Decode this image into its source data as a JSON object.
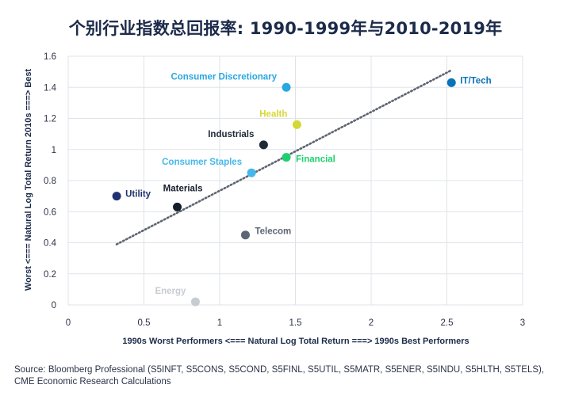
{
  "chart_data": {
    "type": "scatter",
    "title": "个别行业指数总回报率: 1990-1999年与2010-2019年",
    "xlabel": "1990s Worst Performers <=== Natural Log Total Return ===> 1990s Best Performers",
    "ylabel": "Worst <=== Natural Log Total Return 2010s ===> Best",
    "xlim": [
      0,
      3
    ],
    "ylim": [
      0,
      1.6
    ],
    "xticks": [
      "0",
      "0.5",
      "1",
      "1.5",
      "2",
      "2.5",
      "3"
    ],
    "yticks": [
      "0",
      "0.2",
      "0.4",
      "0.6",
      "0.8",
      "1",
      "1.2",
      "1.4",
      "1.6"
    ],
    "grid": true,
    "points": [
      {
        "label": "Consumer Discretionary",
        "x": 1.44,
        "y": 1.4,
        "color": "#29a8e0",
        "label_pos": "left-above"
      },
      {
        "label": "IT/Tech",
        "x": 2.53,
        "y": 1.43,
        "color": "#0a72b8",
        "label_pos": "right"
      },
      {
        "label": "Health",
        "x": 1.51,
        "y": 1.16,
        "color": "#d5d834",
        "label_pos": "left-above"
      },
      {
        "label": "Industrials",
        "x": 1.29,
        "y": 1.03,
        "color": "#1e2836",
        "label_pos": "left-above"
      },
      {
        "label": "Financial",
        "x": 1.44,
        "y": 0.95,
        "color": "#1fcf6f",
        "label_pos": "right-below"
      },
      {
        "label": "Consumer Staples",
        "x": 1.21,
        "y": 0.85,
        "color": "#45b7ea",
        "label_pos": "left-above"
      },
      {
        "label": "Utility",
        "x": 0.32,
        "y": 0.7,
        "color": "#203270",
        "label_pos": "right"
      },
      {
        "label": "Materials",
        "x": 0.72,
        "y": 0.63,
        "color": "#141d2c",
        "label_pos": "left-above-right"
      },
      {
        "label": "Telecom",
        "x": 1.17,
        "y": 0.45,
        "color": "#5d6675",
        "label_pos": "right-above"
      },
      {
        "label": "Energy",
        "x": 0.84,
        "y": 0.02,
        "color": "#c8cbd0",
        "label_pos": "left-above"
      }
    ],
    "trendline": {
      "x": [
        0.32,
        2.53
      ],
      "y": [
        0.39,
        1.51
      ],
      "color": "#5d6470",
      "style": "dotted"
    }
  },
  "source": {
    "line1": "Source: Bloomberg Professional (S5INFT, S5CONS, S5COND, S5FINL, S5UTIL, S5MATR, S5ENER, S5INDU, S5HLTH, S5TELS),",
    "line2": "CME Economic Research Calculations"
  }
}
